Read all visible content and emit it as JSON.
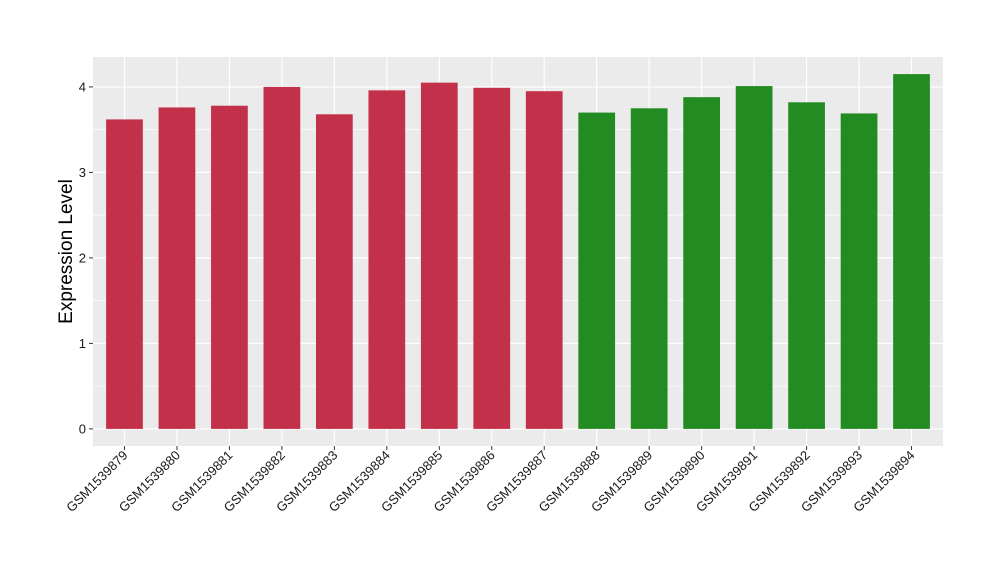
{
  "chart_data": {
    "type": "bar",
    "ylabel": "Expression Level",
    "xlabel": "",
    "title": "",
    "ylim": [
      -0.2,
      4.35
    ],
    "yticks": [
      0,
      1,
      2,
      3,
      4
    ],
    "grid": true,
    "legend": "none",
    "categories": [
      "GSM1539879",
      "GSM1539880",
      "GSM1539881",
      "GSM1539882",
      "GSM1539883",
      "GSM1539884",
      "GSM1539885",
      "GSM1539886",
      "GSM1539887",
      "GSM1539888",
      "GSM1539889",
      "GSM1539890",
      "GSM1539891",
      "GSM1539892",
      "GSM1539893",
      "GSM1539894"
    ],
    "values": [
      3.62,
      3.76,
      3.78,
      4.0,
      3.68,
      3.96,
      4.05,
      3.99,
      3.95,
      3.7,
      3.75,
      3.88,
      4.01,
      3.82,
      3.69,
      4.15
    ],
    "groups": [
      "red",
      "red",
      "red",
      "red",
      "red",
      "red",
      "red",
      "red",
      "red",
      "green",
      "green",
      "green",
      "green",
      "green",
      "green",
      "green"
    ],
    "colors": {
      "red": "#C3304A",
      "green": "#228B22",
      "panel": "#EBEBEB",
      "grid": "#FFFFFF"
    }
  }
}
